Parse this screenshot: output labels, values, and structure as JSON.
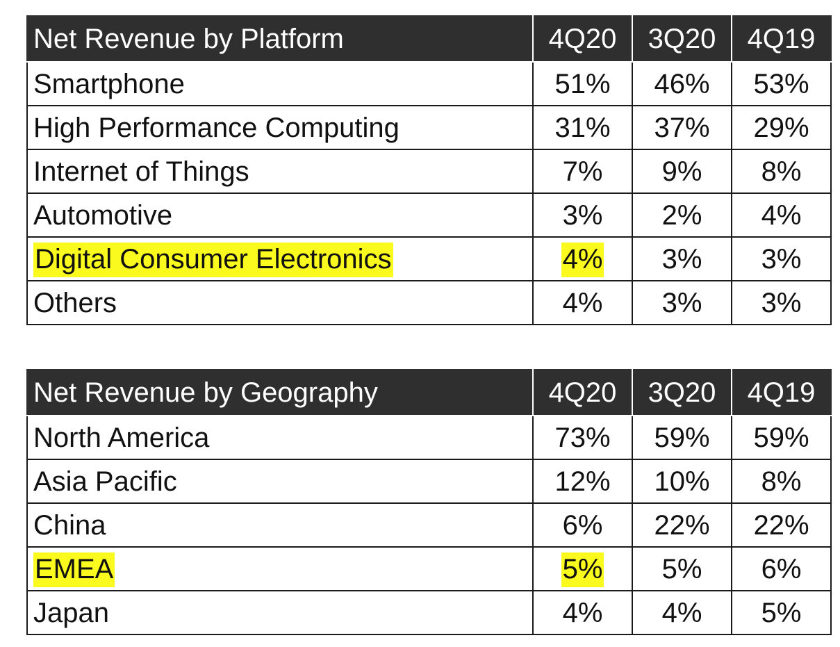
{
  "platform": {
    "title": "Net Revenue by Platform",
    "columns": [
      "4Q20",
      "3Q20",
      "4Q19"
    ],
    "rows": [
      {
        "label": "Smartphone",
        "values": [
          "51%",
          "46%",
          "53%"
        ]
      },
      {
        "label": "High Performance Computing",
        "values": [
          "31%",
          "37%",
          "29%"
        ]
      },
      {
        "label": "Internet of Things",
        "values": [
          "7%",
          "9%",
          "8%"
        ]
      },
      {
        "label": "Automotive",
        "values": [
          "3%",
          "2%",
          "4%"
        ]
      },
      {
        "label": "Digital Consumer Electronics",
        "values": [
          "4%",
          "3%",
          "3%"
        ],
        "highlighted": true
      },
      {
        "label": "Others",
        "values": [
          "4%",
          "3%",
          "3%"
        ]
      }
    ]
  },
  "geography": {
    "title": "Net Revenue by Geography",
    "columns": [
      "4Q20",
      "3Q20",
      "4Q19"
    ],
    "rows": [
      {
        "label": "North America",
        "values": [
          "73%",
          "59%",
          "59%"
        ]
      },
      {
        "label": "Asia Pacific",
        "values": [
          "12%",
          "10%",
          "8%"
        ]
      },
      {
        "label": "China",
        "values": [
          "6%",
          "22%",
          "22%"
        ]
      },
      {
        "label": "EMEA",
        "values": [
          "5%",
          "5%",
          "6%"
        ],
        "highlighted": true
      },
      {
        "label": "Japan",
        "values": [
          "4%",
          "4%",
          "5%"
        ]
      }
    ]
  },
  "colors": {
    "header_bg": "#2f2f2f",
    "header_text": "#ffffff",
    "highlight": "#fafa1e",
    "border": "#1a1a1a"
  }
}
